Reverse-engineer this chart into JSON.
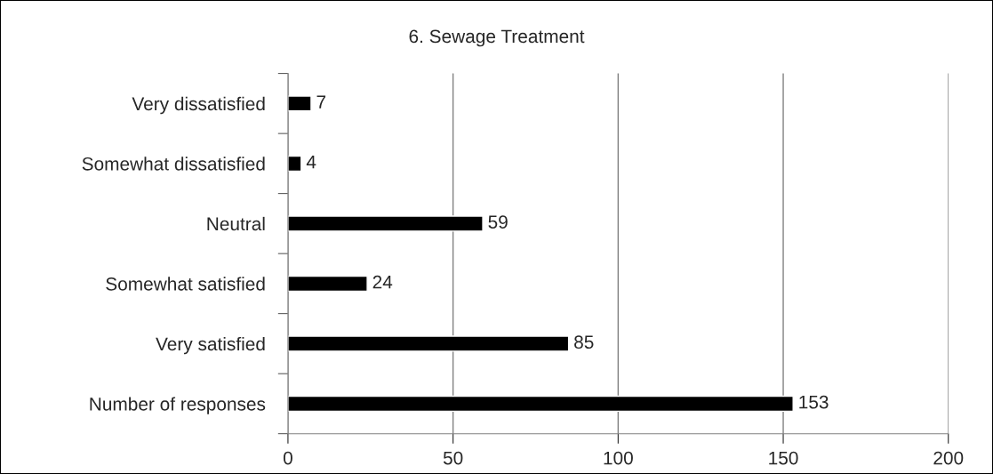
{
  "chart_data": {
    "type": "bar",
    "orientation": "horizontal",
    "title": "6. Sewage Treatment",
    "categories": [
      "Very dissatisfied",
      "Somewhat dissatisfied",
      "Neutral",
      "Somewhat satisfied",
      "Very satisfied",
      "Number of responses"
    ],
    "values": [
      7,
      4,
      59,
      24,
      85,
      153
    ],
    "color": "#000000",
    "xlim": [
      0,
      200
    ],
    "xticks": [
      0,
      50,
      100,
      150,
      200
    ],
    "grid": "x",
    "data_labels": true,
    "legend": false
  }
}
